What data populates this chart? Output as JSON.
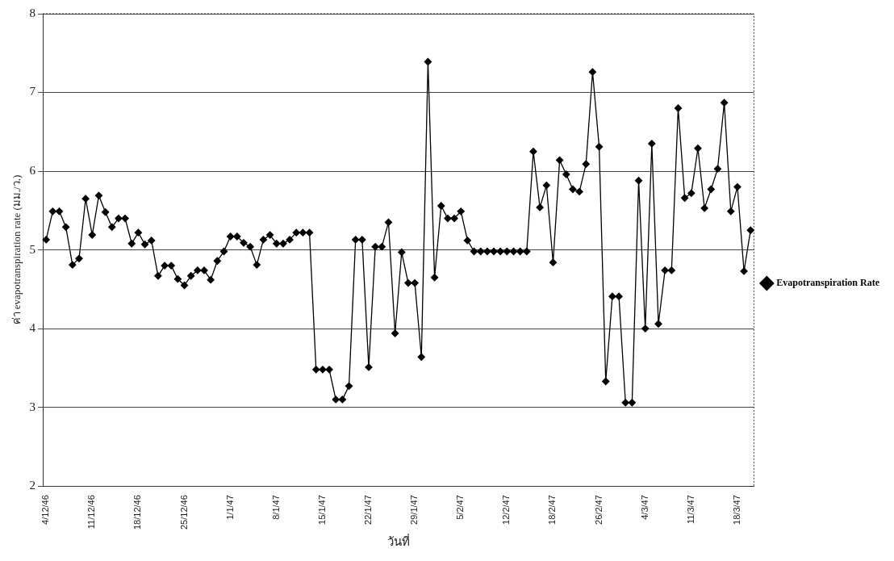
{
  "chart_data": {
    "type": "line",
    "xlabel": "วันที่",
    "ylabel": "ค่า evapotranspiration rate (มม./ว.)",
    "categories": [
      "4/12/46",
      null,
      null,
      null,
      null,
      null,
      null,
      "11/12/46",
      null,
      null,
      null,
      null,
      null,
      null,
      "18/12/46",
      null,
      null,
      null,
      null,
      null,
      null,
      "25/12/46",
      null,
      null,
      null,
      null,
      null,
      null,
      "1/1/47",
      null,
      null,
      null,
      null,
      null,
      null,
      "8/1/47",
      null,
      null,
      null,
      null,
      null,
      null,
      "15/1/47",
      null,
      null,
      null,
      null,
      null,
      null,
      "22/1/47",
      null,
      null,
      null,
      null,
      null,
      null,
      "29/1/47",
      null,
      null,
      null,
      null,
      null,
      null,
      "5/2/47",
      null,
      null,
      null,
      null,
      null,
      null,
      "12/2/47",
      null,
      null,
      null,
      null,
      null,
      null,
      "18/2/47",
      null,
      null,
      null,
      null,
      null,
      null,
      "26/2/47",
      null,
      null,
      null,
      null,
      null,
      null,
      "4/3/47",
      null,
      null,
      null,
      null,
      null,
      null,
      "11/3/47",
      null,
      null,
      null,
      null,
      null,
      null,
      "18/3/47",
      null,
      null
    ],
    "series": [
      {
        "name": "Evapotranspiration Rate",
        "color": "#000000",
        "values": [
          5.13,
          5.49,
          5.49,
          5.29,
          4.81,
          4.89,
          5.65,
          5.19,
          5.69,
          5.48,
          5.29,
          5.4,
          5.4,
          5.08,
          5.22,
          5.07,
          5.12,
          4.67,
          4.8,
          4.8,
          4.63,
          4.55,
          4.67,
          4.74,
          4.74,
          4.62,
          4.86,
          4.98,
          5.17,
          5.17,
          5.09,
          5.04,
          4.81,
          5.13,
          5.19,
          5.08,
          5.08,
          5.13,
          5.22,
          5.22,
          5.22,
          3.48,
          3.48,
          3.48,
          3.1,
          3.1,
          3.27,
          5.13,
          5.13,
          3.51,
          5.04,
          5.04,
          5.35,
          3.94,
          4.97,
          4.58,
          4.58,
          3.64,
          7.39,
          4.65,
          5.56,
          5.4,
          5.4,
          5.49,
          5.12,
          4.98,
          4.98,
          4.98,
          4.98,
          4.98,
          4.98,
          4.98,
          4.98,
          4.98,
          6.25,
          5.54,
          5.82,
          4.84,
          6.14,
          5.96,
          5.77,
          5.74,
          6.09,
          7.26,
          6.31,
          3.33,
          4.41,
          4.41,
          3.06,
          3.06,
          5.88,
          4.0,
          6.35,
          4.06,
          4.74,
          4.74,
          6.8,
          5.66,
          5.72,
          6.29,
          5.53,
          5.77,
          6.03,
          6.87,
          5.49,
          5.8,
          4.73,
          5.25
        ]
      }
    ],
    "ylim": [
      2,
      8
    ],
    "yticks": [
      2,
      3,
      4,
      5,
      6,
      7,
      8
    ],
    "grid": "y",
    "legend": "right",
    "marker": "diamond"
  }
}
